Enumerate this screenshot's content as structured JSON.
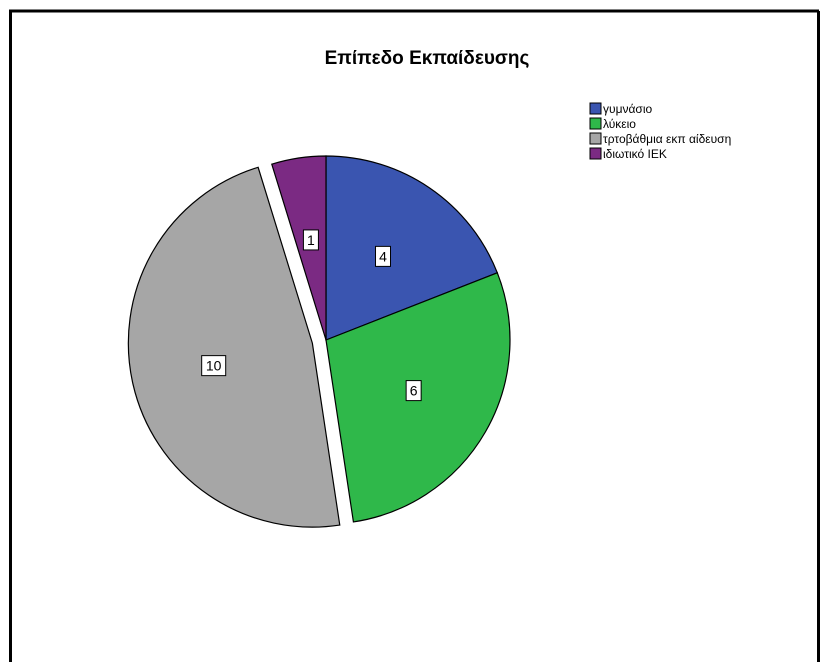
{
  "chart_data": {
    "type": "pie",
    "title": "Επίπεδο Εκπαίδευσης",
    "categories": [
      "γυμνάσιο",
      "λύκειο",
      "τρτοβάθμια εκπ αίδευση",
      "ιδιωτικό ΙΕΚ"
    ],
    "values": [
      4,
      6,
      10,
      1
    ],
    "colors": [
      "#3a55b0",
      "#2fb84a",
      "#a6a6a6",
      "#7b2a83"
    ],
    "exploded": [
      false,
      false,
      true,
      false
    ],
    "start": "12 o'clock",
    "direction": "clockwise",
    "legend_position": "top-right"
  }
}
